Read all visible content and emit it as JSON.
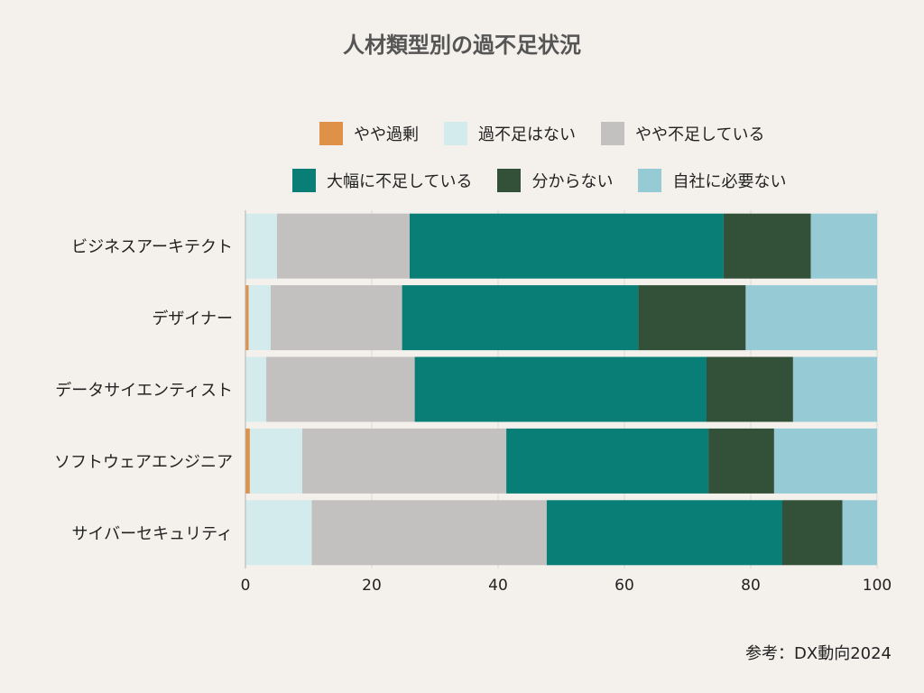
{
  "chart_data": {
    "type": "bar",
    "orientation": "horizontal",
    "stacked": true,
    "title": "人材類型別の過不足状況",
    "categories": [
      "ビジネスアーキテクト",
      "デザイナー",
      "データサイエンティスト",
      "ソフトウェアエンジニア",
      "サイバーセキュリティ"
    ],
    "series": [
      {
        "name": "やや過剰",
        "color": "#e09148",
        "values": [
          0.0,
          0.5,
          0.0,
          0.7,
          0.0
        ]
      },
      {
        "name": "過不足はない",
        "color": "#d3ebec",
        "values": [
          5.0,
          3.5,
          3.3,
          8.3,
          10.5
        ]
      },
      {
        "name": "やや不足している",
        "color": "#c3c0c0",
        "values": [
          21.0,
          20.8,
          23.5,
          32.3,
          37.2
        ]
      },
      {
        "name": "大幅に不足している",
        "color": "#087e77",
        "values": [
          49.7,
          37.4,
          46.2,
          32.0,
          37.3
        ]
      },
      {
        "name": "分からない",
        "color": "#335139",
        "values": [
          13.8,
          17.0,
          13.7,
          10.4,
          9.5
        ]
      },
      {
        "name": "自社に必要ない",
        "color": "#96cbd6",
        "values": [
          10.5,
          20.8,
          13.3,
          16.3,
          5.5
        ]
      }
    ],
    "xlim": [
      0,
      100
    ],
    "xticks": [
      0,
      20,
      40,
      60,
      80,
      100
    ],
    "xlabel": "",
    "ylabel": "",
    "grid": true,
    "legend_position": "top"
  },
  "source": "参考：DX動向2024"
}
